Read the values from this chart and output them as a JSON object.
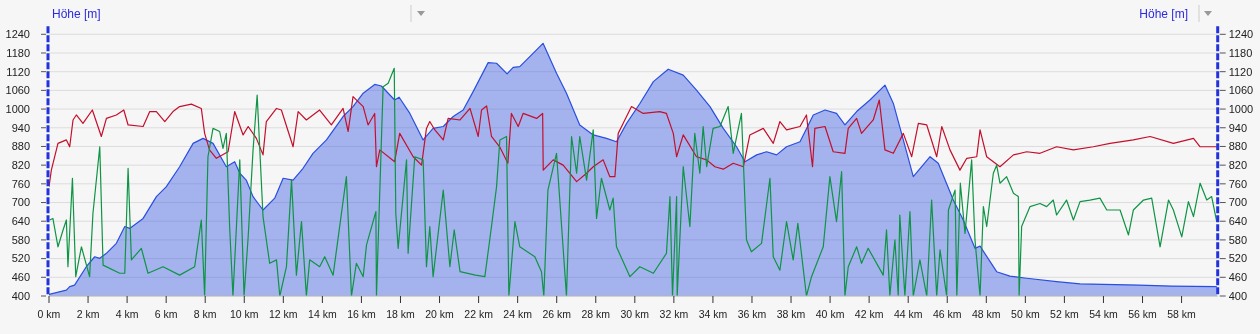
{
  "chart_data": {
    "type": "line",
    "ylabel": "Höhe [m]",
    "y2label": "Höhe [m]",
    "xlim": [
      0,
      59.85
    ],
    "ylim": [
      400,
      1240
    ],
    "y2lim": [
      400,
      1240
    ],
    "xticks": [
      {
        "value": 0,
        "label": "0 km"
      },
      {
        "value": 2,
        "label": "2 km"
      },
      {
        "value": 4,
        "label": "4 km"
      },
      {
        "value": 6,
        "label": "6 km"
      },
      {
        "value": 8,
        "label": "8 km"
      },
      {
        "value": 10,
        "label": "10 km"
      },
      {
        "value": 12,
        "label": "12 km"
      },
      {
        "value": 14,
        "label": "14 km"
      },
      {
        "value": 16,
        "label": "16 km"
      },
      {
        "value": 18,
        "label": "18 km"
      },
      {
        "value": 20,
        "label": "20 km"
      },
      {
        "value": 22,
        "label": "22 km"
      },
      {
        "value": 24,
        "label": "24 km"
      },
      {
        "value": 26,
        "label": "26 km"
      },
      {
        "value": 28,
        "label": "28 km"
      },
      {
        "value": 30,
        "label": "30 km"
      },
      {
        "value": 32,
        "label": "32 km"
      },
      {
        "value": 34,
        "label": "34 km"
      },
      {
        "value": 36,
        "label": "36 km"
      },
      {
        "value": 38,
        "label": "38 km"
      },
      {
        "value": 40,
        "label": "40 km"
      },
      {
        "value": 42,
        "label": "42 km"
      },
      {
        "value": 44,
        "label": "44 km"
      },
      {
        "value": 46,
        "label": "46 km"
      },
      {
        "value": 48,
        "label": "48 km"
      },
      {
        "value": 50,
        "label": "50 km"
      },
      {
        "value": 52,
        "label": "52 km"
      },
      {
        "value": 54,
        "label": "54 km"
      },
      {
        "value": 56,
        "label": "56 km"
      },
      {
        "value": 58,
        "label": "58 km"
      }
    ],
    "yticks": [
      400,
      460,
      520,
      580,
      640,
      700,
      760,
      820,
      880,
      940,
      1000,
      1060,
      1120,
      1180,
      1240
    ],
    "y2ticks": [
      400,
      460,
      520,
      580,
      640,
      700,
      760,
      820,
      880,
      940,
      1000,
      1060,
      1120,
      1180,
      1240
    ],
    "grid": "y",
    "marker": "none",
    "line_style": "solid",
    "series": [
      {
        "type": "area",
        "color": "#2a4fe0",
        "x": [
          0,
          0.89,
          1.06,
          1.31,
          1.91,
          2.34,
          2.6,
          2.94,
          3.45,
          3.88,
          4.13,
          4.82,
          5.5,
          6.01,
          6.69,
          7.38,
          7.89,
          8.4,
          9.08,
          9.51,
          9.77,
          10.1,
          10.45,
          10.96,
          11.56,
          11.99,
          12.5,
          13.01,
          13.52,
          14.21,
          15.06,
          15.57,
          16.09,
          16.68,
          17.02,
          17.7,
          17.93,
          18.48,
          19.16,
          19.67,
          20.19,
          20.7,
          21.21,
          21.72,
          22.49,
          22.92,
          23.46,
          23.77,
          24.11,
          24.79,
          25.3,
          25.99,
          26.5,
          27.18,
          27.87,
          28.55,
          29.06,
          29.58,
          30.26,
          30.95,
          31.71,
          32.48,
          33.16,
          33.85,
          34.53,
          35.21,
          35.64,
          36.24,
          36.75,
          37.26,
          37.77,
          38.46,
          39.14,
          39.74,
          40.33,
          40.76,
          41.36,
          42.04,
          42.81,
          43.24,
          43.75,
          44.26,
          45.12,
          45.54,
          46.31,
          46.82,
          47.42,
          47.68,
          48.53,
          49.21,
          50.07,
          51.6,
          52.8,
          55.8,
          57.5,
          59.8
        ],
        "values": [
          405,
          419,
          430,
          435,
          494,
          526,
          521,
          537,
          569,
          623,
          617,
          649,
          719,
          751,
          815,
          890,
          906,
          890,
          815,
          831,
          794,
          772,
          719,
          676,
          714,
          778,
          772,
          810,
          858,
          901,
          976,
          1008,
          1051,
          1079,
          1074,
          1029,
          1038,
          986,
          901,
          938,
          944,
          976,
          997,
          1056,
          1149,
          1147,
          1113,
          1134,
          1136,
          1179,
          1211,
          1115,
          1051,
          949,
          917,
          906,
          895,
          954,
          1018,
          1088,
          1128,
          1109,
          1061,
          1008,
          938,
          879,
          831,
          853,
          863,
          853,
          879,
          895,
          981,
          997,
          986,
          949,
          992,
          1029,
          1077,
          1018,
          901,
          783,
          847,
          826,
          708,
          644,
          553,
          560,
          478,
          464,
          457,
          446,
          439,
          435,
          432,
          430
        ]
      },
      {
        "color": "#c40f2c",
        "x": [
          0,
          0.12,
          0.46,
          0.89,
          1.06,
          1.23,
          1.4,
          1.74,
          2.22,
          2.68,
          2.94,
          3.45,
          3.83,
          4.05,
          4.82,
          5.16,
          5.5,
          5.93,
          6.35,
          6.69,
          7.29,
          7.8,
          7.97,
          8.22,
          8.57,
          9.17,
          9.51,
          9.94,
          10.2,
          10.62,
          10.96,
          11.13,
          11.65,
          11.9,
          12.5,
          12.76,
          13.18,
          13.86,
          14.46,
          15.06,
          15.32,
          15.57,
          16.09,
          16.34,
          16.68,
          16.77,
          16.94,
          17.7,
          17.96,
          18.65,
          19.08,
          19.33,
          19.5,
          19.76,
          20.19,
          20.44,
          21.05,
          21.56,
          21.98,
          22.15,
          22.41,
          22.66,
          23.08,
          23.5,
          23.68,
          24.03,
          24.28,
          24.97,
          25.28,
          25.31,
          25.82,
          26.33,
          27.02,
          27.53,
          27.87,
          28.38,
          28.72,
          28.98,
          29.15,
          29.4,
          29.83,
          30.43,
          31.28,
          31.62,
          31.97,
          32.14,
          32.48,
          33.16,
          33.68,
          34.1,
          34.53,
          35.04,
          35.56,
          35.89,
          36.58,
          37.09,
          37.43,
          37.77,
          38.46,
          38.79,
          39.1,
          39.22,
          39.74,
          40.16,
          40.76,
          40.93,
          41.36,
          41.61,
          42.21,
          42.52,
          42.81,
          43.24,
          43.75,
          44.18,
          44.52,
          44.95,
          45.46,
          45.72,
          46.14,
          46.65,
          47.0,
          47.51,
          47.68,
          48.02,
          48.7,
          49.39,
          50.07,
          50.75,
          51.6,
          52.46,
          53.48,
          54.34,
          55.53,
          56.39,
          57.58,
          58.61,
          58.95,
          59.8
        ],
        "values": [
          751,
          804,
          890,
          901,
          879,
          965,
          981,
          954,
          997,
          912,
          970,
          981,
          997,
          949,
          944,
          992,
          992,
          960,
          992,
          1008,
          1016,
          1002,
          922,
          869,
          842,
          863,
          992,
          917,
          944,
          906,
          853,
          960,
          1002,
          997,
          879,
          992,
          965,
          997,
          949,
          1002,
          928,
          1040,
          1008,
          949,
          986,
          815,
          869,
          831,
          922,
          847,
          820,
          938,
          960,
          933,
          901,
          970,
          965,
          1002,
          912,
          997,
          1010,
          912,
          879,
          826,
          986,
          944,
          986,
          970,
          986,
          804,
          837,
          820,
          767,
          794,
          815,
          837,
          783,
          783,
          922,
          954,
          1008,
          986,
          992,
          986,
          922,
          847,
          917,
          847,
          837,
          815,
          807,
          826,
          815,
          917,
          938,
          890,
          960,
          933,
          944,
          981,
          815,
          938,
          944,
          863,
          858,
          938,
          970,
          922,
          965,
          1029,
          869,
          858,
          922,
          847,
          954,
          949,
          847,
          944,
          869,
          804,
          842,
          847,
          933,
          847,
          815,
          853,
          863,
          858,
          879,
          869,
          879,
          890,
          901,
          912,
          890,
          906,
          879,
          879
        ]
      },
      {
        "color": "#0e9444",
        "x": [
          0.03,
          0.2,
          0.46,
          0.72,
          0.89,
          0.97,
          1.2,
          1.37,
          1.66,
          2.08,
          2.25,
          2.6,
          2.77,
          3.62,
          3.88,
          4.05,
          4.22,
          4.73,
          5.07,
          5.84,
          6.69,
          7.46,
          7.8,
          7.97,
          8.14,
          8.4,
          8.74,
          8.91,
          9.08,
          9.25,
          9.42,
          9.77,
          9.99,
          10.2,
          10.45,
          10.66,
          10.96,
          11.3,
          11.65,
          11.82,
          12.16,
          12.42,
          12.67,
          12.93,
          13.18,
          13.35,
          13.86,
          14.12,
          14.55,
          15.23,
          15.49,
          15.74,
          16.09,
          16.26,
          16.74,
          16.77,
          17.11,
          17.37,
          17.68,
          17.76,
          17.88,
          18.31,
          18.39,
          18.73,
          19.16,
          19.33,
          19.5,
          19.67,
          20.19,
          20.53,
          20.75,
          21.05,
          21.84,
          22.32,
          22.66,
          22.92,
          23.09,
          23.43,
          23.55,
          23.86,
          24.11,
          24.88,
          25.22,
          25.34,
          25.55,
          25.99,
          26.5,
          26.76,
          27.02,
          27.18,
          27.53,
          27.87,
          28.04,
          28.29,
          28.72,
          28.89,
          29.06,
          29.75,
          30.26,
          30.95,
          31.62,
          31.8,
          31.93,
          32.14,
          32.17,
          32.48,
          32.82,
          33.07,
          33.33,
          33.5,
          33.68,
          34.01,
          34.36,
          34.78,
          35.04,
          35.46,
          35.72,
          35.97,
          36.49,
          36.92,
          37.09,
          37.43,
          37.77,
          38.11,
          38.35,
          38.79,
          39.05,
          39.65,
          39.99,
          40.33,
          40.59,
          40.76,
          40.93,
          41.36,
          41.61,
          41.95,
          42.72,
          42.89,
          43.06,
          43.32,
          43.49,
          43.57,
          43.83,
          44.09,
          44.26,
          44.6,
          44.95,
          45.2,
          45.46,
          45.63,
          45.97,
          46.06,
          46.4,
          46.49,
          46.67,
          46.91,
          47.25,
          47.42,
          47.68,
          47.85,
          48.02,
          48.36,
          48.53,
          48.7,
          49.04,
          49.39,
          49.64,
          49.68,
          49.81,
          50.24,
          50.75,
          51.09,
          51.43,
          51.6,
          52.11,
          52.46,
          52.8,
          53.31,
          53.82,
          54.17,
          54.85,
          55.28,
          55.53,
          56.05,
          56.47,
          56.9,
          57.33,
          57.58,
          58.01,
          58.35,
          58.61,
          58.95,
          59.29,
          59.54,
          59.8
        ],
        "values": [
          644,
          649,
          558,
          612,
          644,
          494,
          778,
          462,
          558,
          462,
          665,
          879,
          499,
          473,
          473,
          810,
          516,
          553,
          473,
          494,
          467,
          494,
          644,
          400,
          847,
          938,
          928,
          874,
          922,
          623,
          400,
          837,
          400,
          590,
          869,
          1045,
          655,
          505,
          516,
          400,
          494,
          772,
          467,
          639,
          400,
          516,
          494,
          526,
          467,
          783,
          400,
          505,
          462,
          564,
          671,
          400,
          1072,
          1083,
          1131,
          665,
          553,
          837,
          537,
          847,
          837,
          494,
          623,
          462,
          740,
          494,
          612,
          478,
          467,
          462,
          623,
          751,
          901,
          912,
          400,
          639,
          558,
          526,
          478,
          400,
          740,
          858,
          400,
          912,
          794,
          912,
          772,
          933,
          649,
          778,
          676,
          714,
          558,
          462,
          494,
          473,
          537,
          719,
          400,
          719,
          400,
          815,
          623,
          922,
          794,
          944,
          815,
          938,
          944,
          1008,
          858,
          986,
          580,
          542,
          569,
          778,
          526,
          483,
          639,
          516,
          633,
          400,
          462,
          558,
          783,
          639,
          799,
          400,
          494,
          558,
          505,
          553,
          467,
          612,
          400,
          580,
          400,
          660,
          400,
          671,
          400,
          516,
          400,
          708,
          400,
          548,
          400,
          676,
          740,
          400,
          762,
          601,
          837,
          580,
          400,
          687,
          623,
          794,
          820,
          762,
          783,
          730,
          719,
          400,
          623,
          687,
          697,
          687,
          708,
          660,
          708,
          644,
          703,
          708,
          714,
          676,
          676,
          596,
          676,
          708,
          714,
          558,
          708,
          676,
          590,
          703,
          655,
          762,
          708,
          719,
          639
        ]
      }
    ]
  }
}
